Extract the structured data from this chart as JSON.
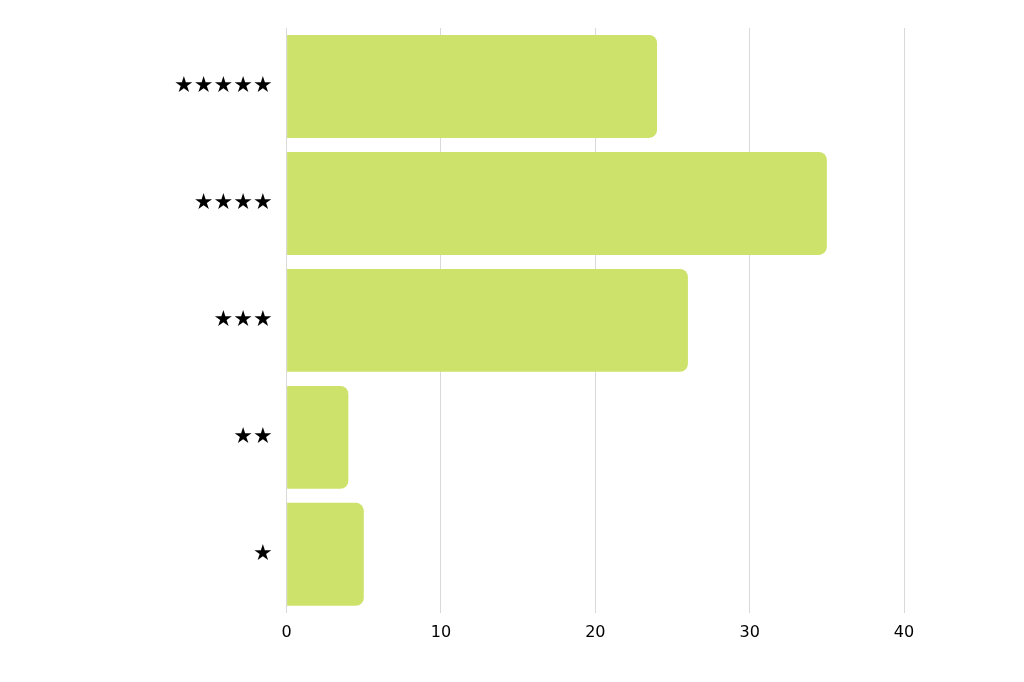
{
  "chart_data": {
    "type": "bar",
    "orientation": "horizontal",
    "categories": [
      "★★★★★",
      "★★★★",
      "★★★",
      "★★",
      "★"
    ],
    "values": [
      24,
      35,
      26,
      4,
      5
    ],
    "color": "#cce26a",
    "xlim": [
      0,
      40
    ],
    "xticks": [
      0,
      10,
      20,
      30,
      40
    ],
    "grid": "x",
    "legend": false
  }
}
